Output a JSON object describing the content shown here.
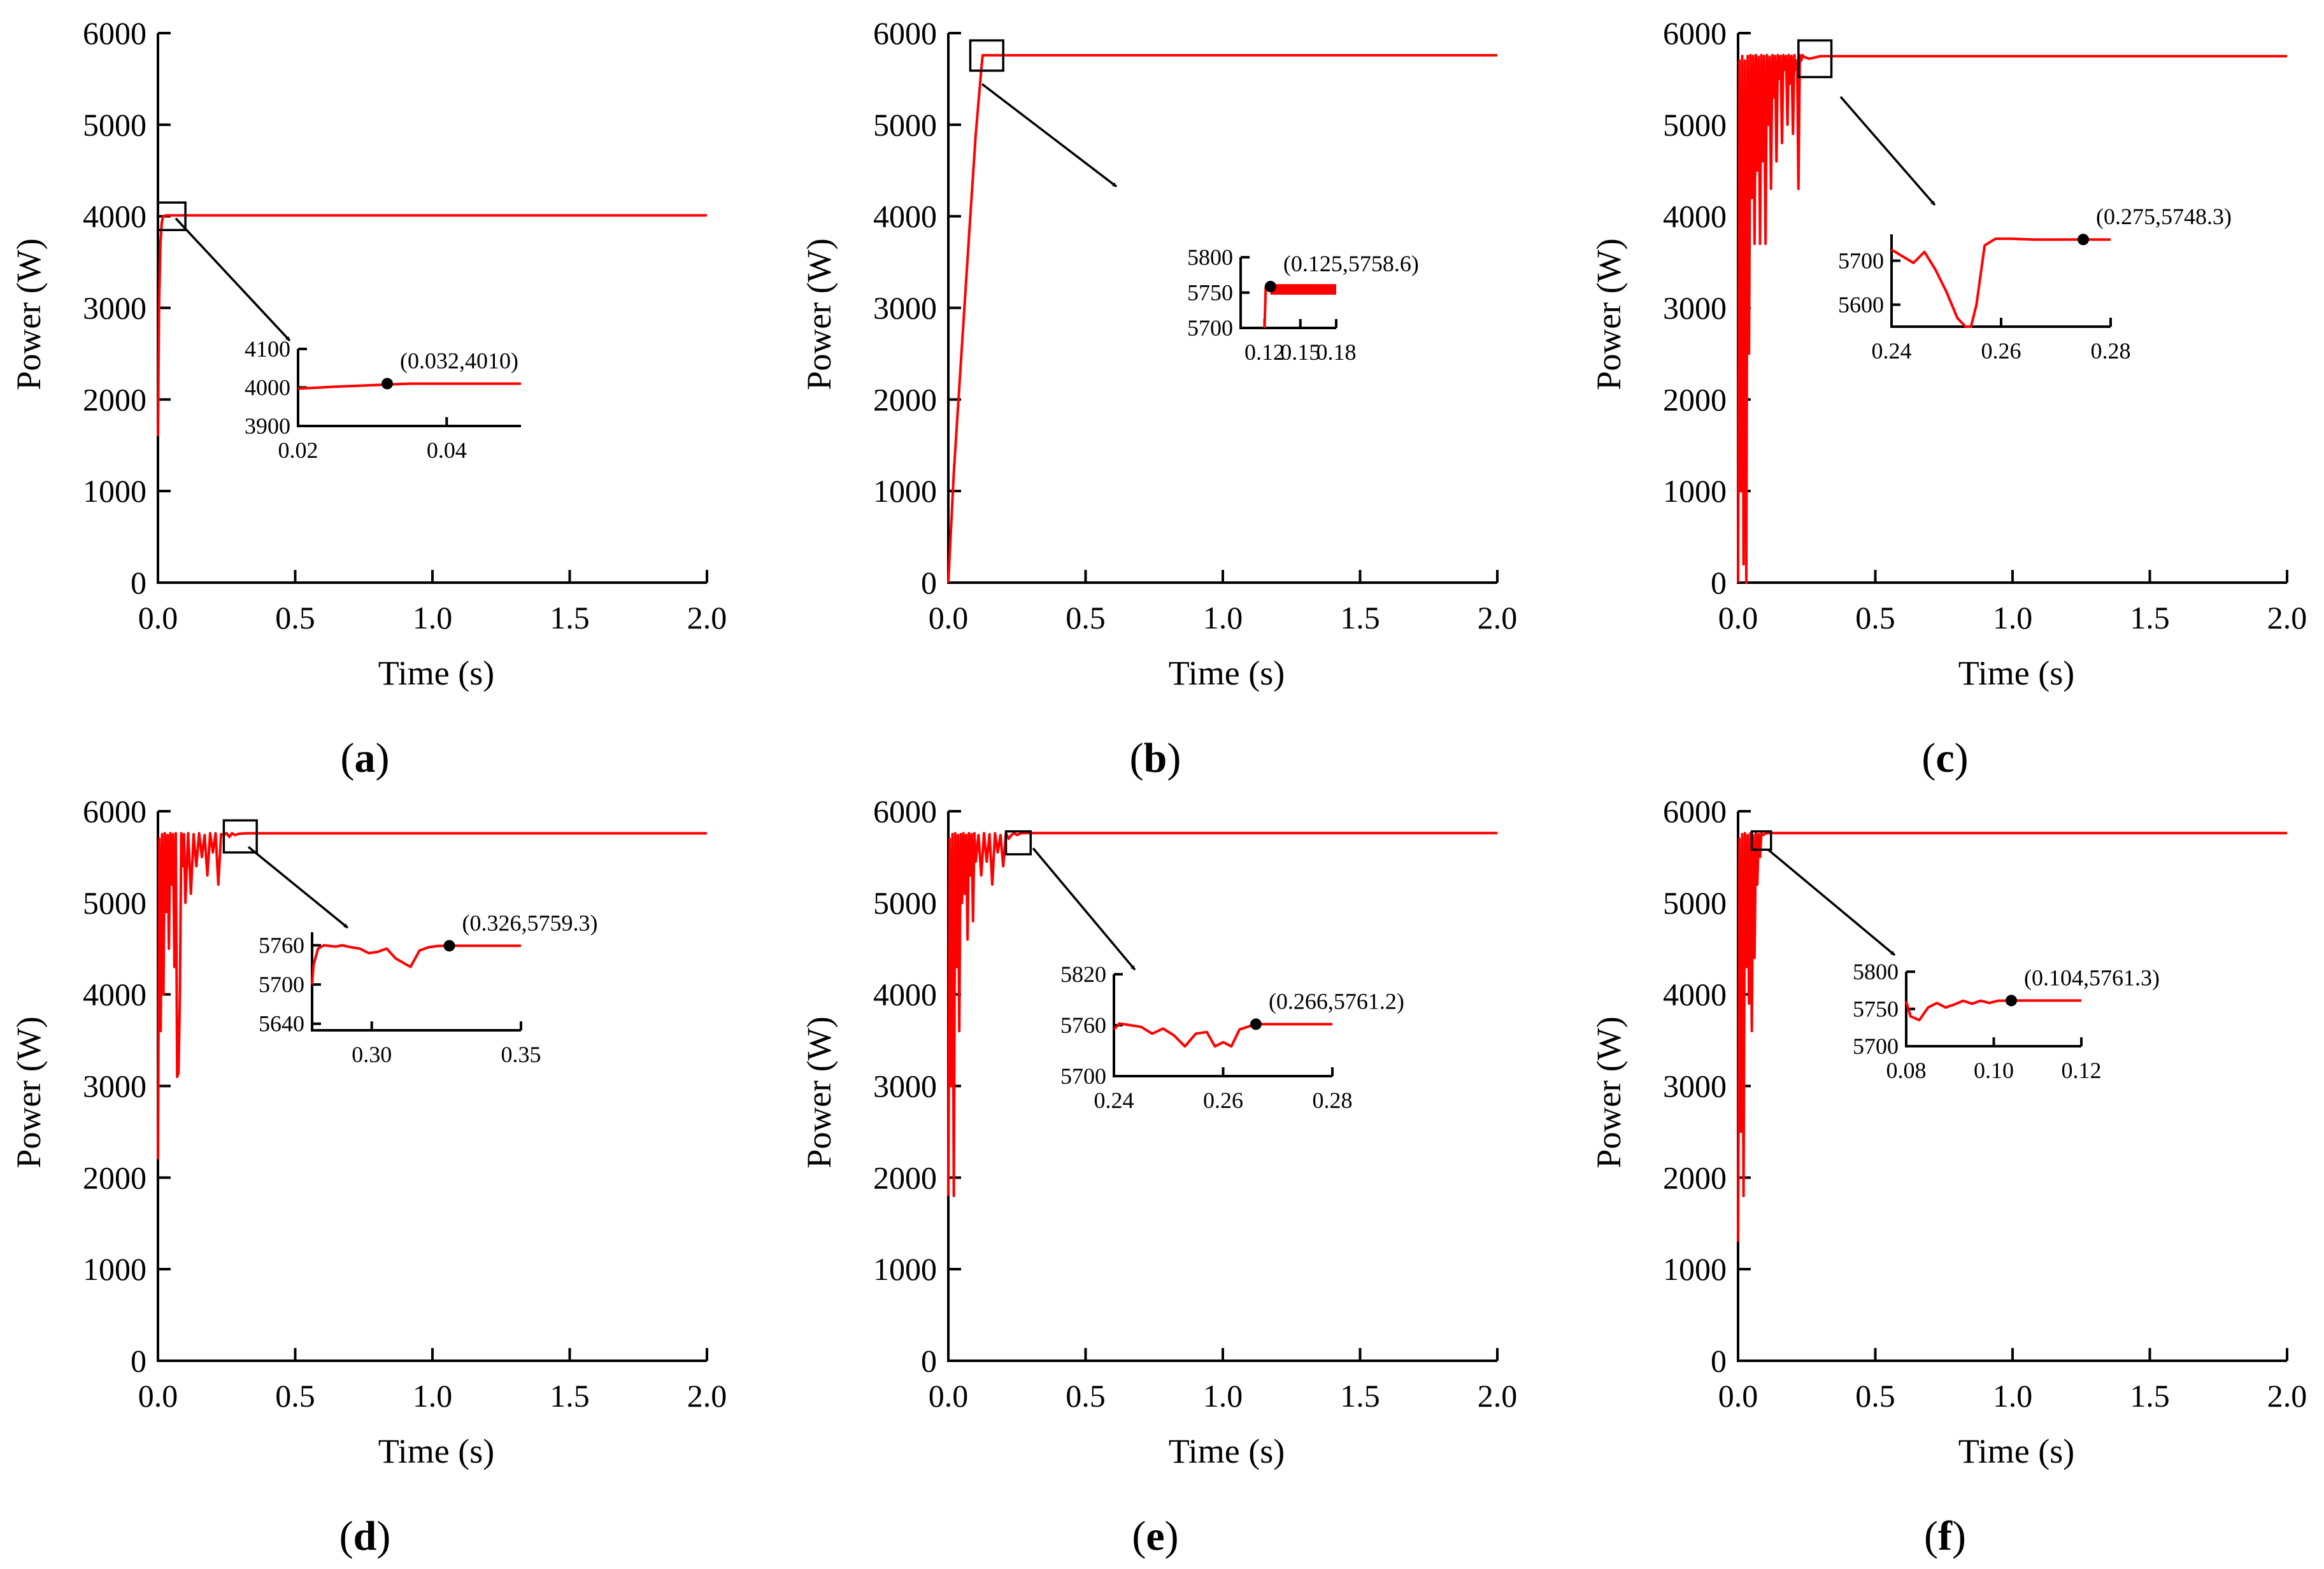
{
  "figure": {
    "colors": {
      "series": "#ff0000",
      "axes": "#000000"
    }
  },
  "chart_data": [
    {
      "id": "a",
      "type": "line",
      "panel_label": "a",
      "xlabel": "Time (s)",
      "ylabel": "Power (W)",
      "xlim": [
        0,
        2.0
      ],
      "ylim": [
        0,
        6000
      ],
      "xticks": [
        "0.0",
        "0.5",
        "1.0",
        "1.5",
        "2.0"
      ],
      "yticks": [
        "0",
        "1000",
        "2000",
        "3000",
        "4000",
        "5000",
        "6000"
      ],
      "series": [
        {
          "name": "Power",
          "color": "#ff0000",
          "x": [
            0,
            0.004,
            0.009,
            0.014,
            0.018,
            0.022,
            0.026,
            0.032,
            0.05,
            2.0
          ],
          "y": [
            1600,
            3000,
            3700,
            3930,
            3990,
            4002,
            4008,
            4010,
            4010,
            4010
          ]
        }
      ],
      "zoom_box": {
        "x": [
          0.0,
          0.1
        ],
        "y": [
          3850,
          4150
        ]
      },
      "inset": {
        "xlim": [
          0.02,
          0.05
        ],
        "ylim": [
          3900,
          4100
        ],
        "xticks": [
          "0.02",
          "0.04"
        ],
        "yticks": [
          "3900",
          "4000",
          "4100"
        ],
        "x": [
          0.02,
          0.025,
          0.03,
          0.035,
          0.04,
          0.045,
          0.05
        ],
        "y": [
          3997,
          4002,
          4006,
          4010,
          4010,
          4010,
          4010
        ],
        "point": {
          "x": 0.032,
          "y": 4010
        },
        "annotation": "(0.032,4010)"
      }
    },
    {
      "id": "b",
      "type": "line",
      "panel_label": "b",
      "xlabel": "Time (s)",
      "ylabel": "Power (W)",
      "xlim": [
        0,
        2.0
      ],
      "ylim": [
        0,
        6000
      ],
      "xticks": [
        "0.0",
        "0.5",
        "1.0",
        "1.5",
        "2.0"
      ],
      "yticks": [
        "0",
        "1000",
        "2000",
        "3000",
        "4000",
        "5000",
        "6000"
      ],
      "series": [
        {
          "name": "Power",
          "color": "#ff0000",
          "x": [
            0,
            0.02,
            0.05,
            0.08,
            0.1,
            0.12,
            0.125,
            0.15,
            2.0
          ],
          "y": [
            0,
            1200,
            2600,
            4000,
            4900,
            5600,
            5758.6,
            5758.6,
            5758.6
          ]
        }
      ],
      "zoom_box": {
        "x": [
          0.08,
          0.2
        ],
        "y": [
          5590,
          5920
        ]
      },
      "inset": {
        "xlim": [
          0.1,
          0.18
        ],
        "ylim": [
          5700,
          5800
        ],
        "xticks": [
          "0.12",
          "0.15",
          "0.18"
        ],
        "yticks": [
          "5700",
          "5750",
          "5800"
        ],
        "x": [
          0.12,
          0.121,
          0.125,
          0.18
        ],
        "y": [
          5700,
          5758,
          5758.6,
          5758.6
        ],
        "band_y": [
          5747,
          5762
        ],
        "point": {
          "x": 0.125,
          "y": 5758.6
        },
        "annotation": "(0.125,5758.6)"
      }
    },
    {
      "id": "c",
      "type": "line",
      "panel_label": "c",
      "xlabel": "Time (s)",
      "ylabel": "Power (W)",
      "xlim": [
        0,
        2.0
      ],
      "ylim": [
        0,
        6000
      ],
      "xticks": [
        "0.0",
        "0.5",
        "1.0",
        "1.5",
        "2.0"
      ],
      "yticks": [
        "0",
        "1000",
        "2000",
        "3000",
        "4000",
        "5000",
        "6000"
      ],
      "series": [
        {
          "name": "Power",
          "color": "#ff0000",
          "x": [
            0,
            0.005,
            0.01,
            0.015,
            0.02,
            0.025,
            0.03,
            0.035,
            0.04,
            0.045,
            0.05,
            0.055,
            0.06,
            0.065,
            0.07,
            0.075,
            0.08,
            0.085,
            0.09,
            0.095,
            0.1,
            0.105,
            0.11,
            0.115,
            0.12,
            0.125,
            0.13,
            0.135,
            0.14,
            0.145,
            0.15,
            0.155,
            0.16,
            0.165,
            0.17,
            0.175,
            0.18,
            0.185,
            0.19,
            0.195,
            0.2,
            0.205,
            0.21,
            0.215,
            0.22,
            0.225,
            0.23,
            0.235,
            0.24,
            0.26,
            0.3,
            2.0
          ],
          "y": [
            0,
            5700,
            1000,
            5750,
            200,
            5700,
            0,
            5750,
            2500,
            5760,
            4200,
            5750,
            3700,
            5760,
            4500,
            5740,
            3700,
            5760,
            4600,
            5750,
            3700,
            5760,
            5000,
            5740,
            4300,
            5760,
            5300,
            5750,
            4600,
            5760,
            5500,
            5750,
            4800,
            5760,
            5600,
            5750,
            5000,
            5760,
            5450,
            5750,
            4900,
            5760,
            5600,
            5700,
            4300,
            5760,
            5700,
            5760,
            5740,
            5720,
            5748,
            5748
          ]
        }
      ],
      "zoom_box": {
        "x": [
          0.22,
          0.34
        ],
        "y": [
          5520,
          5920
        ]
      },
      "inset": {
        "xlim": [
          0.24,
          0.28
        ],
        "ylim": [
          5550,
          5760
        ],
        "xticks": [
          "0.24",
          "0.26",
          "0.28"
        ],
        "yticks": [
          "5600",
          "5700"
        ],
        "x": [
          0.24,
          0.244,
          0.246,
          0.248,
          0.25,
          0.252,
          0.2535,
          0.2545,
          0.2555,
          0.257,
          0.259,
          0.262,
          0.266,
          0.27,
          0.275,
          0.28
        ],
        "y": [
          5725,
          5695,
          5720,
          5680,
          5630,
          5570,
          5550,
          5550,
          5600,
          5735,
          5750,
          5750,
          5748,
          5748,
          5748.3,
          5748
        ],
        "point": {
          "x": 0.275,
          "y": 5748.3
        },
        "annotation": "(0.275,5748.3)"
      }
    },
    {
      "id": "d",
      "type": "line",
      "panel_label": "d",
      "xlabel": "Time (s)",
      "ylabel": "Power (W)",
      "xlim": [
        0,
        2.0
      ],
      "ylim": [
        0,
        6000
      ],
      "xticks": [
        "0.0",
        "0.5",
        "1.0",
        "1.5",
        "2.0"
      ],
      "yticks": [
        "0",
        "1000",
        "2000",
        "3000",
        "4000",
        "5000",
        "6000"
      ],
      "series": [
        {
          "name": "Power",
          "color": "#ff0000",
          "x": [
            0,
            0.005,
            0.01,
            0.015,
            0.02,
            0.025,
            0.03,
            0.035,
            0.04,
            0.045,
            0.05,
            0.055,
            0.06,
            0.065,
            0.07,
            0.075,
            0.08,
            0.085,
            0.09,
            0.095,
            0.1,
            0.11,
            0.12,
            0.13,
            0.14,
            0.15,
            0.16,
            0.17,
            0.18,
            0.19,
            0.2,
            0.21,
            0.22,
            0.23,
            0.24,
            0.25,
            0.26,
            0.27,
            0.28,
            0.29,
            0.3,
            0.326,
            0.4,
            2.0
          ],
          "y": [
            2200,
            5700,
            3600,
            5750,
            4000,
            5760,
            4900,
            5740,
            4500,
            5760,
            5200,
            5750,
            4300,
            5760,
            3100,
            3150,
            4000,
            5760,
            5400,
            5750,
            5000,
            5760,
            5100,
            5750,
            5400,
            5760,
            5500,
            5740,
            5300,
            5760,
            5550,
            5760,
            5200,
            5750,
            5740,
            5760,
            5720,
            5760,
            5740,
            5750,
            5755,
            5759.3,
            5759.3,
            5759.3
          ]
        }
      ],
      "zoom_box": {
        "x": [
          0.24,
          0.36
        ],
        "y": [
          5550,
          5900
        ]
      },
      "inset": {
        "xlim": [
          0.28,
          0.35
        ],
        "ylim": [
          5630,
          5780
        ],
        "xticks": [
          "0.30",
          "0.35"
        ],
        "yticks": [
          "5640",
          "5700",
          "5760"
        ],
        "x": [
          0.28,
          0.2805,
          0.282,
          0.284,
          0.288,
          0.29,
          0.293,
          0.296,
          0.299,
          0.302,
          0.305,
          0.308,
          0.311,
          0.313,
          0.316,
          0.319,
          0.322,
          0.326,
          0.335,
          0.35
        ],
        "y": [
          5700,
          5730,
          5755,
          5760,
          5758,
          5760,
          5757,
          5755,
          5748,
          5750,
          5755,
          5740,
          5732,
          5727,
          5752,
          5757,
          5759,
          5759.3,
          5759.3,
          5759.3
        ],
        "point": {
          "x": 0.326,
          "y": 5759.3
        },
        "annotation": "(0.326,5759.3)"
      }
    },
    {
      "id": "e",
      "type": "line",
      "panel_label": "e",
      "xlabel": "Time (s)",
      "ylabel": "Power (W)",
      "xlim": [
        0,
        2.0
      ],
      "ylim": [
        0,
        6000
      ],
      "xticks": [
        "0.0",
        "0.5",
        "1.0",
        "1.5",
        "2.0"
      ],
      "yticks": [
        "0",
        "1000",
        "2000",
        "3000",
        "4000",
        "5000",
        "6000"
      ],
      "series": [
        {
          "name": "Power",
          "color": "#ff0000",
          "x": [
            0,
            0.005,
            0.01,
            0.015,
            0.02,
            0.025,
            0.03,
            0.035,
            0.04,
            0.045,
            0.05,
            0.055,
            0.06,
            0.065,
            0.07,
            0.075,
            0.08,
            0.085,
            0.09,
            0.095,
            0.1,
            0.11,
            0.12,
            0.13,
            0.14,
            0.15,
            0.16,
            0.17,
            0.18,
            0.19,
            0.2,
            0.21,
            0.22,
            0.23,
            0.24,
            0.25,
            0.266,
            0.3,
            2.0
          ],
          "y": [
            1800,
            5700,
            3000,
            5750,
            1800,
            5760,
            4300,
            5740,
            3600,
            5750,
            5000,
            5760,
            5100,
            5740,
            4600,
            5760,
            5300,
            5750,
            4800,
            5760,
            5450,
            5740,
            5300,
            5760,
            5450,
            5750,
            5200,
            5760,
            5550,
            5740,
            5400,
            5760,
            5700,
            5740,
            5762,
            5740,
            5761.2,
            5761.2,
            5761.2
          ]
        }
      ],
      "zoom_box": {
        "x": [
          0.21,
          0.3
        ],
        "y": [
          5530,
          5780
        ]
      },
      "inset": {
        "xlim": [
          0.24,
          0.28
        ],
        "ylim": [
          5700,
          5820
        ],
        "xticks": [
          "0.24",
          "0.26",
          "0.28"
        ],
        "yticks": [
          "5700",
          "5760",
          "5820"
        ],
        "x": [
          0.24,
          0.241,
          0.243,
          0.245,
          0.247,
          0.249,
          0.251,
          0.253,
          0.255,
          0.257,
          0.2585,
          0.26,
          0.2615,
          0.263,
          0.266,
          0.272,
          0.28
        ],
        "y": [
          5755,
          5762,
          5760,
          5758,
          5750,
          5756,
          5748,
          5735,
          5750,
          5752,
          5735,
          5740,
          5735,
          5755,
          5761.2,
          5761.2,
          5761.2
        ],
        "point": {
          "x": 0.266,
          "y": 5761.2
        },
        "annotation": "(0.266,5761.2)"
      }
    },
    {
      "id": "f",
      "type": "line",
      "panel_label": "f",
      "xlabel": "Time (s)",
      "ylabel": "Power (W)",
      "xlim": [
        0,
        2.0
      ],
      "ylim": [
        0,
        6000
      ],
      "xticks": [
        "0.0",
        "0.5",
        "1.0",
        "1.5",
        "2.0"
      ],
      "yticks": [
        "0",
        "1000",
        "2000",
        "3000",
        "4000",
        "5000",
        "6000"
      ],
      "series": [
        {
          "name": "Power",
          "color": "#ff0000",
          "x": [
            0,
            0.005,
            0.01,
            0.015,
            0.02,
            0.025,
            0.03,
            0.035,
            0.04,
            0.045,
            0.05,
            0.055,
            0.06,
            0.065,
            0.07,
            0.075,
            0.08,
            0.085,
            0.09,
            0.1,
            0.104,
            0.15,
            2.0
          ],
          "y": [
            1300,
            5700,
            2500,
            5750,
            1800,
            5760,
            4300,
            5740,
            3900,
            5760,
            3600,
            5740,
            4400,
            5760,
            5200,
            5750,
            5500,
            5760,
            5740,
            5755,
            5761.3,
            5761.3,
            5761.3
          ]
        }
      ],
      "zoom_box": {
        "x": [
          0.05,
          0.12
        ],
        "y": [
          5580,
          5780
        ]
      },
      "inset": {
        "xlim": [
          0.08,
          0.12
        ],
        "ylim": [
          5700,
          5800
        ],
        "xticks": [
          "0.08",
          "0.10",
          "0.12"
        ],
        "yticks": [
          "5700",
          "5750",
          "5800"
        ],
        "x": [
          0.08,
          0.081,
          0.083,
          0.085,
          0.087,
          0.089,
          0.091,
          0.093,
          0.095,
          0.097,
          0.099,
          0.101,
          0.104,
          0.11,
          0.12
        ],
        "y": [
          5760,
          5740,
          5735,
          5752,
          5758,
          5752,
          5756,
          5761,
          5757,
          5761,
          5758,
          5761,
          5761.3,
          5761.3,
          5761.3
        ],
        "point": {
          "x": 0.104,
          "y": 5761.3
        },
        "annotation": "(0.104,5761.3)"
      }
    }
  ]
}
